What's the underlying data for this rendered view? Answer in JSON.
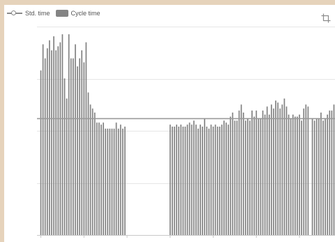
{
  "legend": {
    "std_time_label": "Std. time",
    "cycle_time_label": "Cycle time"
  },
  "colors": {
    "bar": "#828282",
    "std_line": "#9a9a9a",
    "grid": "#e6e6e6",
    "axis": "#c8c8c8",
    "frame": "#e6d3bb"
  },
  "icons": {
    "toolbox": "crop-icon"
  },
  "chart_data": {
    "type": "bar",
    "title": "",
    "xlabel": "",
    "ylabel": "",
    "ylim": [
      0,
      100
    ],
    "grid": true,
    "legend_position": "top-left",
    "series": [
      {
        "name": "Cycle time",
        "type": "bar",
        "values": [
          82,
          95,
          88,
          93,
          97,
          92,
          99,
          92,
          94,
          96,
          100,
          78,
          68,
          100,
          88,
          88,
          95,
          84,
          88,
          92,
          86,
          96,
          71,
          65,
          63,
          61,
          56,
          56,
          55,
          56,
          53,
          53,
          53,
          53,
          53,
          56,
          53,
          55,
          53,
          54,
          null,
          null,
          null,
          null,
          null,
          null,
          null,
          null,
          null,
          null,
          null,
          null,
          null,
          null,
          null,
          null,
          null,
          null,
          null,
          null,
          55,
          54,
          54,
          55,
          54,
          55,
          54,
          54,
          55,
          56,
          55,
          57,
          55,
          53,
          55,
          54,
          58,
          54,
          53,
          55,
          54,
          55,
          54,
          54,
          55,
          57,
          56,
          55,
          59,
          61,
          57,
          57,
          62,
          65,
          61,
          57,
          58,
          57,
          62,
          59,
          62,
          58,
          58,
          62,
          60,
          64,
          60,
          65,
          63,
          67,
          66,
          63,
          65,
          68,
          64,
          60,
          58,
          60,
          59,
          59,
          60,
          57,
          63,
          65,
          64,
          null,
          58,
          57,
          58,
          58,
          61,
          57,
          58,
          60,
          62,
          62,
          65
        ]
      },
      {
        "name": "Std. time",
        "type": "line",
        "value": 58
      }
    ]
  }
}
